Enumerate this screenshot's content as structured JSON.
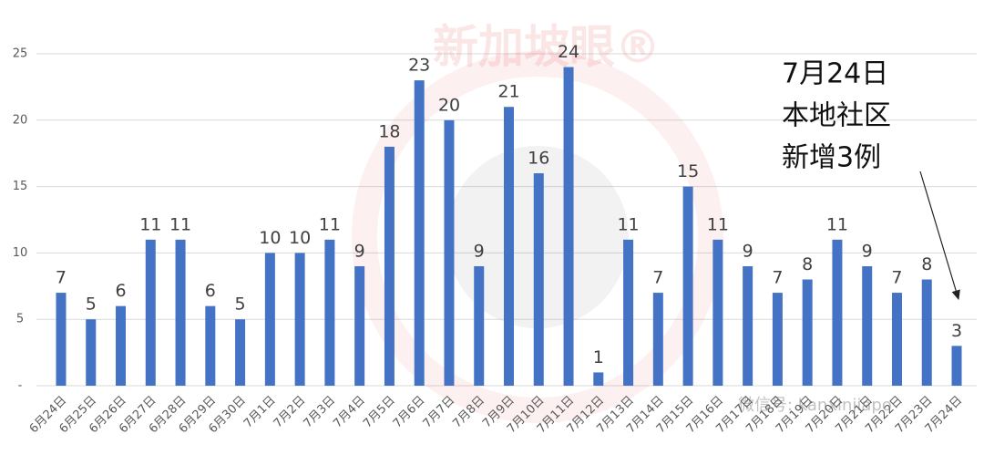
{
  "chart_data": {
    "type": "bar",
    "categories": [
      "6月24日",
      "6月25日",
      "6月26日",
      "6月27日",
      "6月28日",
      "6月29日",
      "6月30日",
      "7月1日",
      "7月2日",
      "7月3日",
      "7月4日",
      "7月5日",
      "7月6日",
      "7月7日",
      "7月8日",
      "7月9日",
      "7月10日",
      "7月11日",
      "7月12日",
      "7月13日",
      "7月14日",
      "7月15日",
      "7月16日",
      "7月17日",
      "7月18日",
      "7月19日",
      "7月20日",
      "7月21日",
      "7月22日",
      "7月23日",
      "7月24日"
    ],
    "values": [
      7,
      5,
      6,
      11,
      11,
      6,
      5,
      10,
      10,
      11,
      9,
      18,
      23,
      20,
      9,
      21,
      16,
      24,
      1,
      11,
      7,
      15,
      11,
      9,
      7,
      8,
      11,
      9,
      7,
      8,
      3
    ],
    "color": "#4472c4",
    "ylim": [
      0,
      25
    ],
    "yticks": [
      {
        "value": 0,
        "label": "-"
      },
      5,
      10,
      15,
      20,
      25
    ],
    "grid": true,
    "annotation": [
      "7月24日",
      "本地社区",
      "新增3例"
    ],
    "watermarks": [
      "新加坡眼®",
      "微信号: kanxinjiapo"
    ]
  }
}
